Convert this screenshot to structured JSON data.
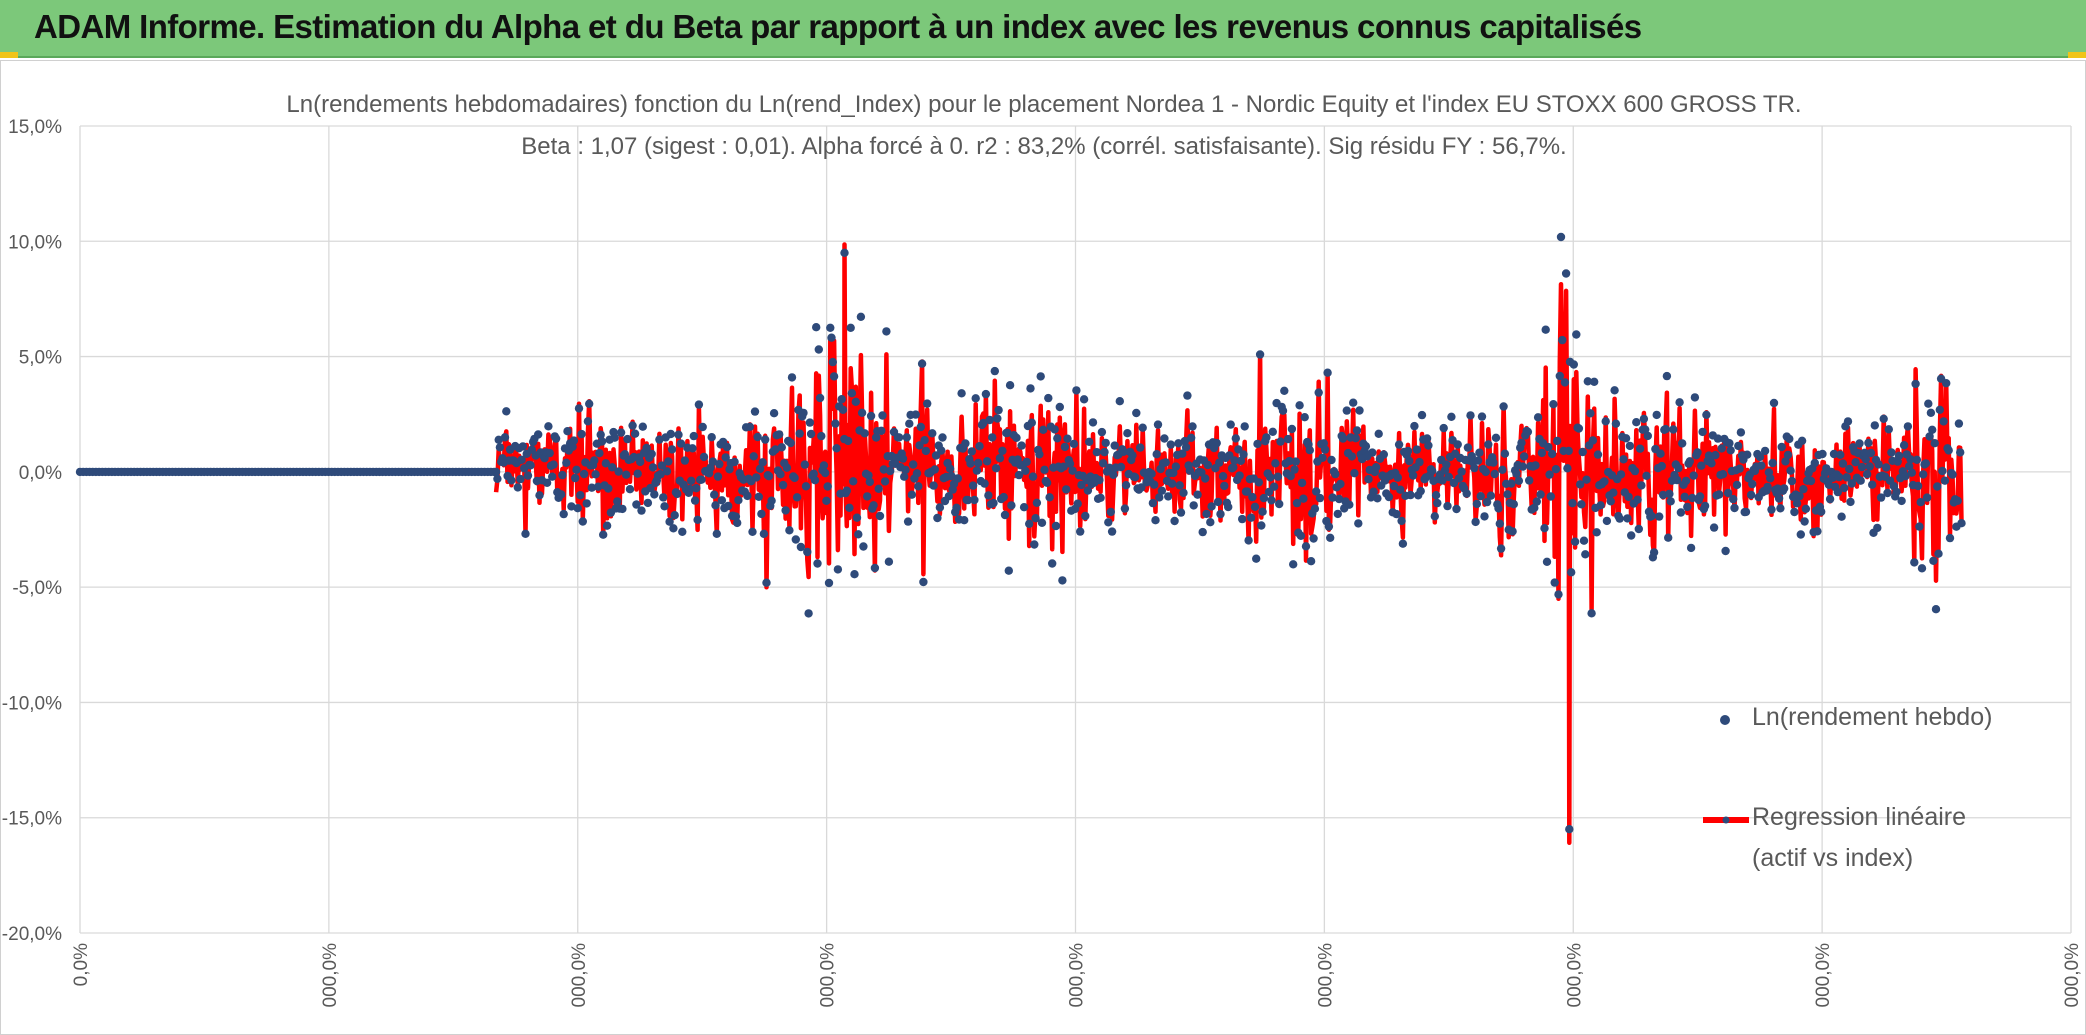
{
  "banner": {
    "title": "ADAM Informe. Estimation du Alpha et du Beta par rapport à un index avec les revenus connus capitalisés",
    "background": "#7cc87a",
    "corner_color": "#f0c419"
  },
  "chart_data": {
    "type": "scatter",
    "title": "Ln(rendements hebdomadaires) fonction du Ln(rend_Index) pour le placement Nordea 1 - Nordic Equity  et l'index EU STOXX 600 GROSS TR.",
    "subtitle": "Beta : 1,07 (sigest : 0,01).  Alpha forcé à 0. r2 : 83,2% (corrél. satisfaisante). Sig résidu FY : 56,7%.",
    "ylim": [
      -0.2,
      0.15
    ],
    "y_ticks": [
      "15,0%",
      "10,0%",
      "5,0%",
      "0,0%",
      "-5,0%",
      "-10,0%",
      "-15,0%",
      "-20,0%"
    ],
    "x_ticks": [
      "0,0%",
      "000,0%",
      "000,0%",
      "000,0%",
      "000,0%",
      "000,0%",
      "000,0%",
      "000,0%",
      "000,0%"
    ],
    "grid": true,
    "legend_position": "right",
    "series": [
      {
        "name": "Ln(rendement hebdo)",
        "kind": "points",
        "color": "#2e4a7a"
      },
      {
        "name": "Regression linéaire",
        "name_line2": "(actif vs index)",
        "kind": "line",
        "color": "#ff0000"
      }
    ],
    "notable_points": [
      {
        "label": "max",
        "x_fraction": 0.384,
        "y": 0.095
      },
      {
        "label": "min",
        "x_fraction": 0.748,
        "y": -0.155
      },
      {
        "label": "zero_run_end",
        "x_fraction": 0.208,
        "y": 0.0
      }
    ]
  }
}
